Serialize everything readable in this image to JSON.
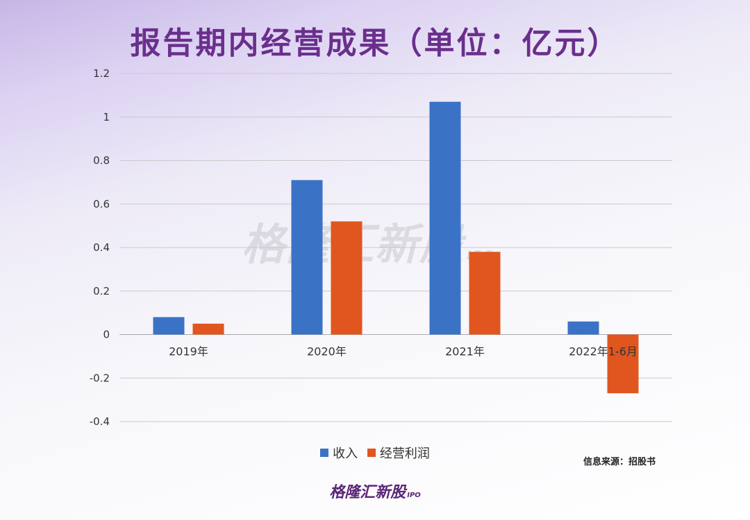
{
  "title": "报告期内经营成果（单位：亿元）",
  "source": "信息来源：招股书",
  "watermark": {
    "text": "格隆汇新股",
    "sub": "IPO"
  },
  "logo": {
    "text": "格隆汇新股",
    "sub": "IPO"
  },
  "colors": {
    "income": "#3a73c6",
    "profit": "#e0561e",
    "title": "#6a2f8c"
  },
  "chart_data": {
    "type": "bar",
    "categories": [
      "2019年",
      "2020年",
      "2021年",
      "2022年1-6月"
    ],
    "series": [
      {
        "name": "收入",
        "values": [
          0.08,
          0.71,
          1.07,
          0.06
        ]
      },
      {
        "name": "经营利润",
        "values": [
          0.05,
          0.52,
          0.38,
          -0.27
        ]
      }
    ],
    "ylim": [
      -0.4,
      1.2
    ],
    "yticks": [
      1.2,
      1,
      0.8,
      0.6,
      0.4,
      0.2,
      0,
      -0.2,
      -0.4
    ],
    "ytick_labels": [
      "1.2",
      "1",
      "0.8",
      "0.6",
      "0.4",
      "0.2",
      "0",
      "-0.2",
      "-0.4"
    ],
    "grid": true,
    "legend_position": "bottom"
  }
}
